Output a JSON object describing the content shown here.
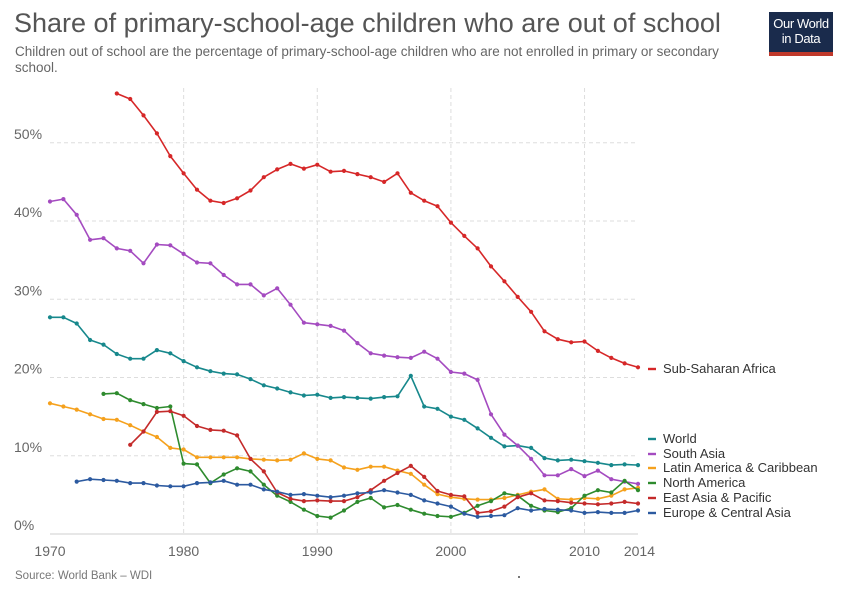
{
  "header": {
    "title": "Share of primary-school-age children who are out of school",
    "subtitle": "Children out of school are the percentage of primary-school-age children who are not enrolled in primary or secondary school."
  },
  "logo": {
    "line1": "Our World",
    "line2": "in Data",
    "bg_color": "#1a2b4c",
    "accent_color": "#c0392b"
  },
  "footer": {
    "source": "Source: World Bank – WDI"
  },
  "chart_data": {
    "type": "line",
    "title": "Share of primary-school-age children who are out of school",
    "xlabel": "",
    "ylabel": "",
    "xlim": [
      1970,
      2014
    ],
    "ylim": [
      0,
      57
    ],
    "grid": true,
    "legend_placement": "right",
    "x_ticks": [
      {
        "value": 1970,
        "label": "1970"
      },
      {
        "value": 1980,
        "label": "1980"
      },
      {
        "value": 1990,
        "label": "1990"
      },
      {
        "value": 2000,
        "label": "2000"
      },
      {
        "value": 2010,
        "label": "2010"
      },
      {
        "value": 2014,
        "label": "2014"
      }
    ],
    "y_ticks": [
      {
        "value": 0,
        "label": "0%"
      },
      {
        "value": 10,
        "label": "10%"
      },
      {
        "value": 20,
        "label": "20%"
      },
      {
        "value": 30,
        "label": "30%"
      },
      {
        "value": 40,
        "label": "40%"
      },
      {
        "value": 50,
        "label": "50%"
      }
    ],
    "series": [
      {
        "name": "Sub-Saharan Africa",
        "color": "#d62728",
        "x": [
          1975,
          1976,
          1977,
          1978,
          1979,
          1980,
          1981,
          1982,
          1983,
          1984,
          1985,
          1986,
          1987,
          1988,
          1989,
          1990,
          1991,
          1992,
          1993,
          1994,
          1995,
          1996,
          1997,
          1998,
          1999,
          2000,
          2001,
          2002,
          2003,
          2004,
          2005,
          2006,
          2007,
          2008,
          2009,
          2010,
          2011,
          2012,
          2013,
          2014
        ],
        "y": [
          56.3,
          55.6,
          53.5,
          51.2,
          48.3,
          46.1,
          44.0,
          42.6,
          42.3,
          42.9,
          43.9,
          45.6,
          46.6,
          47.3,
          46.7,
          47.2,
          46.3,
          46.4,
          46.0,
          45.6,
          45.0,
          46.1,
          43.6,
          42.6,
          41.9,
          39.8,
          38.1,
          36.5,
          34.2,
          32.3,
          30.3,
          28.4,
          25.9,
          24.9,
          24.5,
          24.6,
          23.4,
          22.5,
          21.8,
          21.3
        ]
      },
      {
        "name": "World",
        "color": "#17888c",
        "x": [
          1970,
          1971,
          1972,
          1973,
          1974,
          1975,
          1976,
          1977,
          1978,
          1979,
          1980,
          1981,
          1982,
          1983,
          1984,
          1985,
          1986,
          1987,
          1988,
          1989,
          1990,
          1991,
          1992,
          1993,
          1994,
          1995,
          1996,
          1997,
          1998,
          1999,
          2000,
          2001,
          2002,
          2003,
          2004,
          2005,
          2006,
          2007,
          2008,
          2009,
          2010,
          2011,
          2012,
          2013,
          2014
        ],
        "y": [
          27.7,
          27.7,
          26.9,
          24.8,
          24.2,
          23.0,
          22.4,
          22.4,
          23.5,
          23.1,
          22.1,
          21.3,
          20.8,
          20.5,
          20.4,
          19.8,
          19.0,
          18.6,
          18.1,
          17.7,
          17.8,
          17.4,
          17.5,
          17.4,
          17.3,
          17.5,
          17.6,
          20.2,
          16.3,
          16.0,
          15.0,
          14.6,
          13.5,
          12.3,
          11.2,
          11.3,
          11.0,
          9.7,
          9.4,
          9.5,
          9.3,
          9.1,
          8.8,
          8.9,
          8.8
        ]
      },
      {
        "name": "South Asia",
        "color": "#a44bc0",
        "x": [
          1970,
          1971,
          1972,
          1973,
          1974,
          1975,
          1976,
          1977,
          1978,
          1979,
          1980,
          1981,
          1982,
          1983,
          1984,
          1985,
          1986,
          1987,
          1988,
          1989,
          1990,
          1991,
          1992,
          1993,
          1994,
          1995,
          1996,
          1997,
          1998,
          1999,
          2000,
          2001,
          2002,
          2003,
          2004,
          2005,
          2006,
          2007,
          2008,
          2009,
          2010,
          2011,
          2012,
          2013,
          2014
        ],
        "y": [
          42.5,
          42.8,
          40.8,
          37.6,
          37.8,
          36.5,
          36.2,
          34.6,
          37.0,
          36.9,
          35.8,
          34.7,
          34.6,
          33.1,
          31.9,
          31.9,
          30.5,
          31.4,
          29.3,
          27.0,
          26.8,
          26.6,
          26.0,
          24.4,
          23.1,
          22.8,
          22.6,
          22.5,
          23.3,
          22.4,
          20.7,
          20.5,
          19.7,
          15.3,
          12.7,
          11.3,
          9.6,
          7.5,
          7.5,
          8.3,
          7.4,
          8.1,
          7.0,
          6.7,
          6.4
        ]
      },
      {
        "name": "Latin America & Caribbean",
        "color": "#f5a11d",
        "x": [
          1970,
          1971,
          1972,
          1973,
          1974,
          1975,
          1976,
          1977,
          1978,
          1979,
          1980,
          1981,
          1982,
          1983,
          1984,
          1985,
          1986,
          1987,
          1988,
          1989,
          1990,
          1991,
          1992,
          1993,
          1994,
          1995,
          1996,
          1997,
          1998,
          1999,
          2000,
          2001,
          2002,
          2003,
          2004,
          2005,
          2006,
          2007,
          2008,
          2009,
          2010,
          2011,
          2012,
          2013,
          2014
        ],
        "y": [
          16.7,
          16.3,
          15.9,
          15.3,
          14.7,
          14.6,
          13.9,
          13.1,
          12.4,
          11.0,
          10.8,
          9.8,
          9.8,
          9.8,
          9.8,
          9.6,
          9.5,
          9.4,
          9.5,
          10.3,
          9.6,
          9.4,
          8.5,
          8.2,
          8.6,
          8.6,
          8.1,
          7.7,
          6.3,
          5.1,
          4.7,
          4.5,
          4.4,
          4.4,
          4.6,
          5.0,
          5.4,
          5.7,
          4.5,
          4.4,
          4.6,
          4.5,
          4.9,
          5.7,
          5.9
        ]
      },
      {
        "name": "North America",
        "color": "#2e8b2e",
        "x": [
          1974,
          1975,
          1976,
          1977,
          1978,
          1979,
          1980,
          1981,
          1982,
          1983,
          1984,
          1985,
          1986,
          1987,
          1988,
          1989,
          1990,
          1991,
          1992,
          1993,
          1994,
          1995,
          1996,
          1997,
          1998,
          1999,
          2000,
          2001,
          2002,
          2003,
          2004,
          2005,
          2006,
          2007,
          2008,
          2009,
          2010,
          2011,
          2012,
          2013,
          2014
        ],
        "y": [
          17.9,
          18.0,
          17.1,
          16.6,
          16.1,
          16.3,
          9.0,
          8.9,
          6.5,
          7.6,
          8.4,
          8.0,
          6.3,
          4.9,
          4.1,
          3.1,
          2.3,
          2.1,
          3.0,
          4.1,
          4.6,
          3.4,
          3.7,
          3.1,
          2.6,
          2.3,
          2.2,
          2.7,
          3.6,
          4.2,
          5.2,
          4.9,
          3.6,
          3.0,
          2.8,
          3.3,
          4.9,
          5.6,
          5.3,
          6.8,
          5.6
        ]
      },
      {
        "name": "East Asia & Pacific",
        "color": "#c42a2a",
        "x": [
          1976,
          1977,
          1978,
          1979,
          1980,
          1981,
          1982,
          1983,
          1984,
          1985,
          1986,
          1987,
          1988,
          1989,
          1990,
          1991,
          1992,
          1993,
          1994,
          1995,
          1996,
          1997,
          1998,
          1999,
          2000,
          2001,
          2002,
          2003,
          2004,
          2005,
          2006,
          2007,
          2008,
          2009,
          2010,
          2011,
          2012,
          2013,
          2014
        ],
        "y": [
          11.4,
          13.1,
          15.6,
          15.7,
          15.1,
          13.8,
          13.3,
          13.2,
          12.6,
          9.6,
          8.0,
          5.3,
          4.5,
          4.2,
          4.3,
          4.2,
          4.2,
          4.7,
          5.6,
          6.8,
          7.8,
          8.7,
          7.3,
          5.5,
          5.0,
          4.8,
          2.7,
          2.9,
          3.5,
          4.7,
          5.2,
          4.3,
          4.2,
          4.0,
          3.9,
          3.8,
          3.9,
          4.1,
          3.9
        ]
      },
      {
        "name": "Europe & Central Asia",
        "color": "#2c5aa0",
        "x": [
          1972,
          1973,
          1974,
          1975,
          1976,
          1977,
          1978,
          1979,
          1980,
          1981,
          1982,
          1983,
          1984,
          1985,
          1986,
          1987,
          1988,
          1989,
          1990,
          1991,
          1992,
          1993,
          1994,
          1995,
          1996,
          1997,
          1998,
          1999,
          2000,
          2001,
          2002,
          2003,
          2004,
          2005,
          2006,
          2007,
          2008,
          2009,
          2010,
          2011,
          2012,
          2013,
          2014
        ],
        "y": [
          6.7,
          7.0,
          6.9,
          6.8,
          6.5,
          6.5,
          6.2,
          6.1,
          6.1,
          6.5,
          6.6,
          6.8,
          6.3,
          6.3,
          5.7,
          5.4,
          5.0,
          5.1,
          4.9,
          4.7,
          4.9,
          5.2,
          5.3,
          5.6,
          5.3,
          5.0,
          4.3,
          3.9,
          3.5,
          2.6,
          2.2,
          2.3,
          2.4,
          3.3,
          3.0,
          3.2,
          3.1,
          3.0,
          2.7,
          2.8,
          2.7,
          2.7,
          3.0
        ]
      }
    ]
  }
}
